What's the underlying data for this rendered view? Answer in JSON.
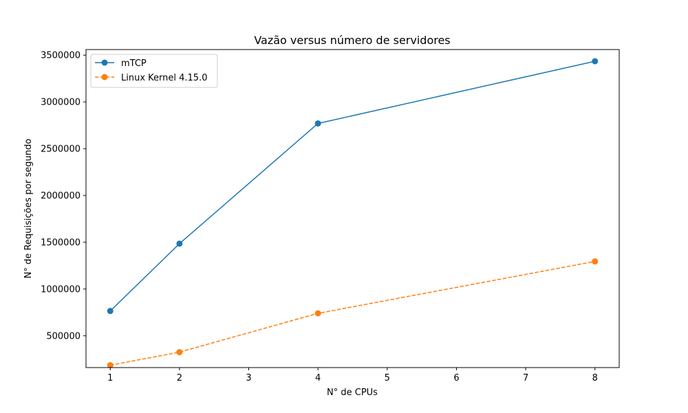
{
  "chart_data": {
    "type": "line",
    "title": "Vazão versus número de servidores",
    "xlabel": "N° de CPUs",
    "ylabel": "N° de Requisições por segundo",
    "x": [
      1,
      2,
      4,
      8
    ],
    "xlim": [
      0.65,
      8.35
    ],
    "ylim": [
      160000,
      3560000
    ],
    "xticks": [
      1,
      2,
      3,
      4,
      5,
      6,
      7,
      8
    ],
    "yticks": [
      500000,
      1000000,
      1500000,
      2000000,
      2500000,
      3000000,
      3500000
    ],
    "xtick_labels": [
      "1",
      "2",
      "3",
      "4",
      "5",
      "6",
      "7",
      "8"
    ],
    "ytick_labels": [
      "500000",
      "1000000",
      "1500000",
      "2000000",
      "2500000",
      "3000000",
      "3500000"
    ],
    "grid": false,
    "legend_position": "top-left",
    "series": [
      {
        "name": "mTCP",
        "values": [
          765000,
          1485000,
          2770000,
          3435000
        ],
        "color": "#1f77b4",
        "line_style": "solid",
        "marker": "circle"
      },
      {
        "name": "Linux Kernel 4.15.0",
        "values": [
          185000,
          325000,
          740000,
          1295000
        ],
        "color": "#ff7f0e",
        "line_style": "dashed",
        "marker": "circle"
      }
    ]
  }
}
